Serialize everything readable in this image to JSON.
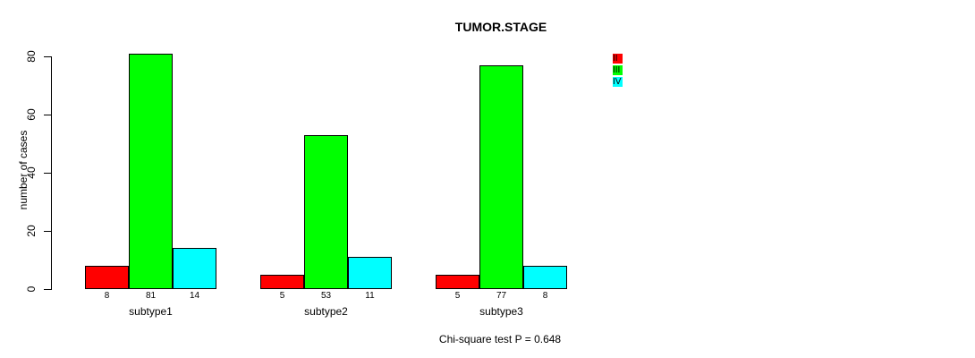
{
  "chart_data": {
    "type": "bar",
    "grouped": true,
    "title": "TUMOR.STAGE",
    "xlabel": "",
    "ylabel": "number of cases",
    "categories": [
      "subtype1",
      "subtype2",
      "subtype3"
    ],
    "series": [
      {
        "name": "II",
        "color": "#ff0000",
        "values": [
          8,
          5,
          5
        ]
      },
      {
        "name": "III",
        "color": "#00ff00",
        "values": [
          81,
          53,
          77
        ]
      },
      {
        "name": "IV",
        "color": "#00ffff",
        "values": [
          14,
          11,
          8
        ]
      }
    ],
    "bar_value_labels": [
      [
        "8",
        "81",
        "14"
      ],
      [
        "5",
        "53",
        "11"
      ],
      [
        "5",
        "77",
        "8"
      ]
    ],
    "yticks": [
      "0",
      "20",
      "40",
      "60",
      "80"
    ],
    "ytick_values": [
      0,
      20,
      40,
      60,
      80
    ],
    "ylim": [
      0,
      80
    ],
    "grid": false,
    "legend": {
      "position": "top-right",
      "entries": [
        {
          "label": "II",
          "color": "#ff0000"
        },
        {
          "label": "III",
          "color": "#00ff00"
        },
        {
          "label": "IV",
          "color": "#00ffff"
        }
      ]
    },
    "annotation": "Chi-square test P = 0.648",
    "axis_color": "#000000",
    "background_color": "#ffffff"
  }
}
